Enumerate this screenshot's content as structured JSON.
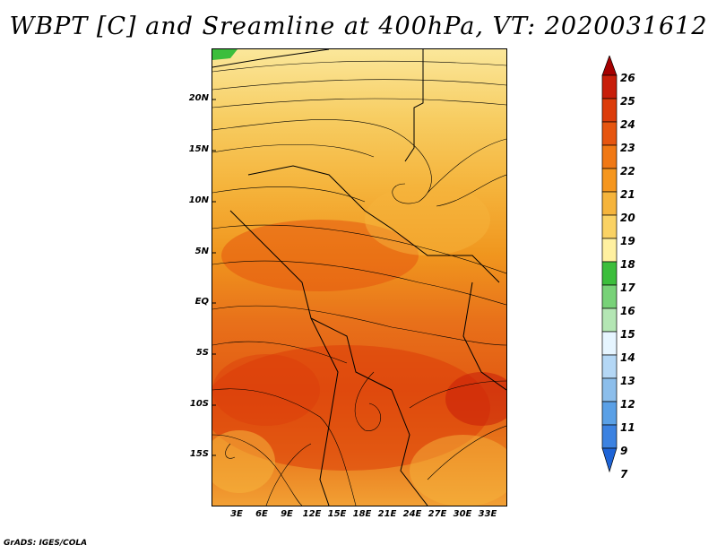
{
  "title": "WBPT [C] and Sreamline at 400hPa, VT: 2020031612",
  "credit": "GrADS: IGES/COLA",
  "map": {
    "lat_labels": [
      "20N",
      "15N",
      "10N",
      "5N",
      "EQ",
      "5S",
      "10S",
      "15S"
    ],
    "lon_labels": [
      "3E",
      "6E",
      "9E",
      "12E",
      "15E",
      "18E",
      "21E",
      "24E",
      "27E",
      "30E",
      "33E"
    ]
  },
  "colorbar": {
    "labels": [
      "26",
      "25",
      "24",
      "23",
      "22",
      "21",
      "20",
      "19",
      "18",
      "17",
      "16",
      "15",
      "14",
      "13",
      "12",
      "11",
      "9",
      "7"
    ],
    "colors": [
      "#a50000",
      "#c81e0a",
      "#dc3c0a",
      "#e6550f",
      "#f07814",
      "#f5961e",
      "#f5b43c",
      "#fad264",
      "#fff0a0",
      "#3cbe3c",
      "#78d278",
      "#b4e6b4",
      "#e6f5ff",
      "#b4d7f5",
      "#8cbeeb",
      "#5aa0e6",
      "#3c82e1",
      "#1e64d7"
    ]
  }
}
